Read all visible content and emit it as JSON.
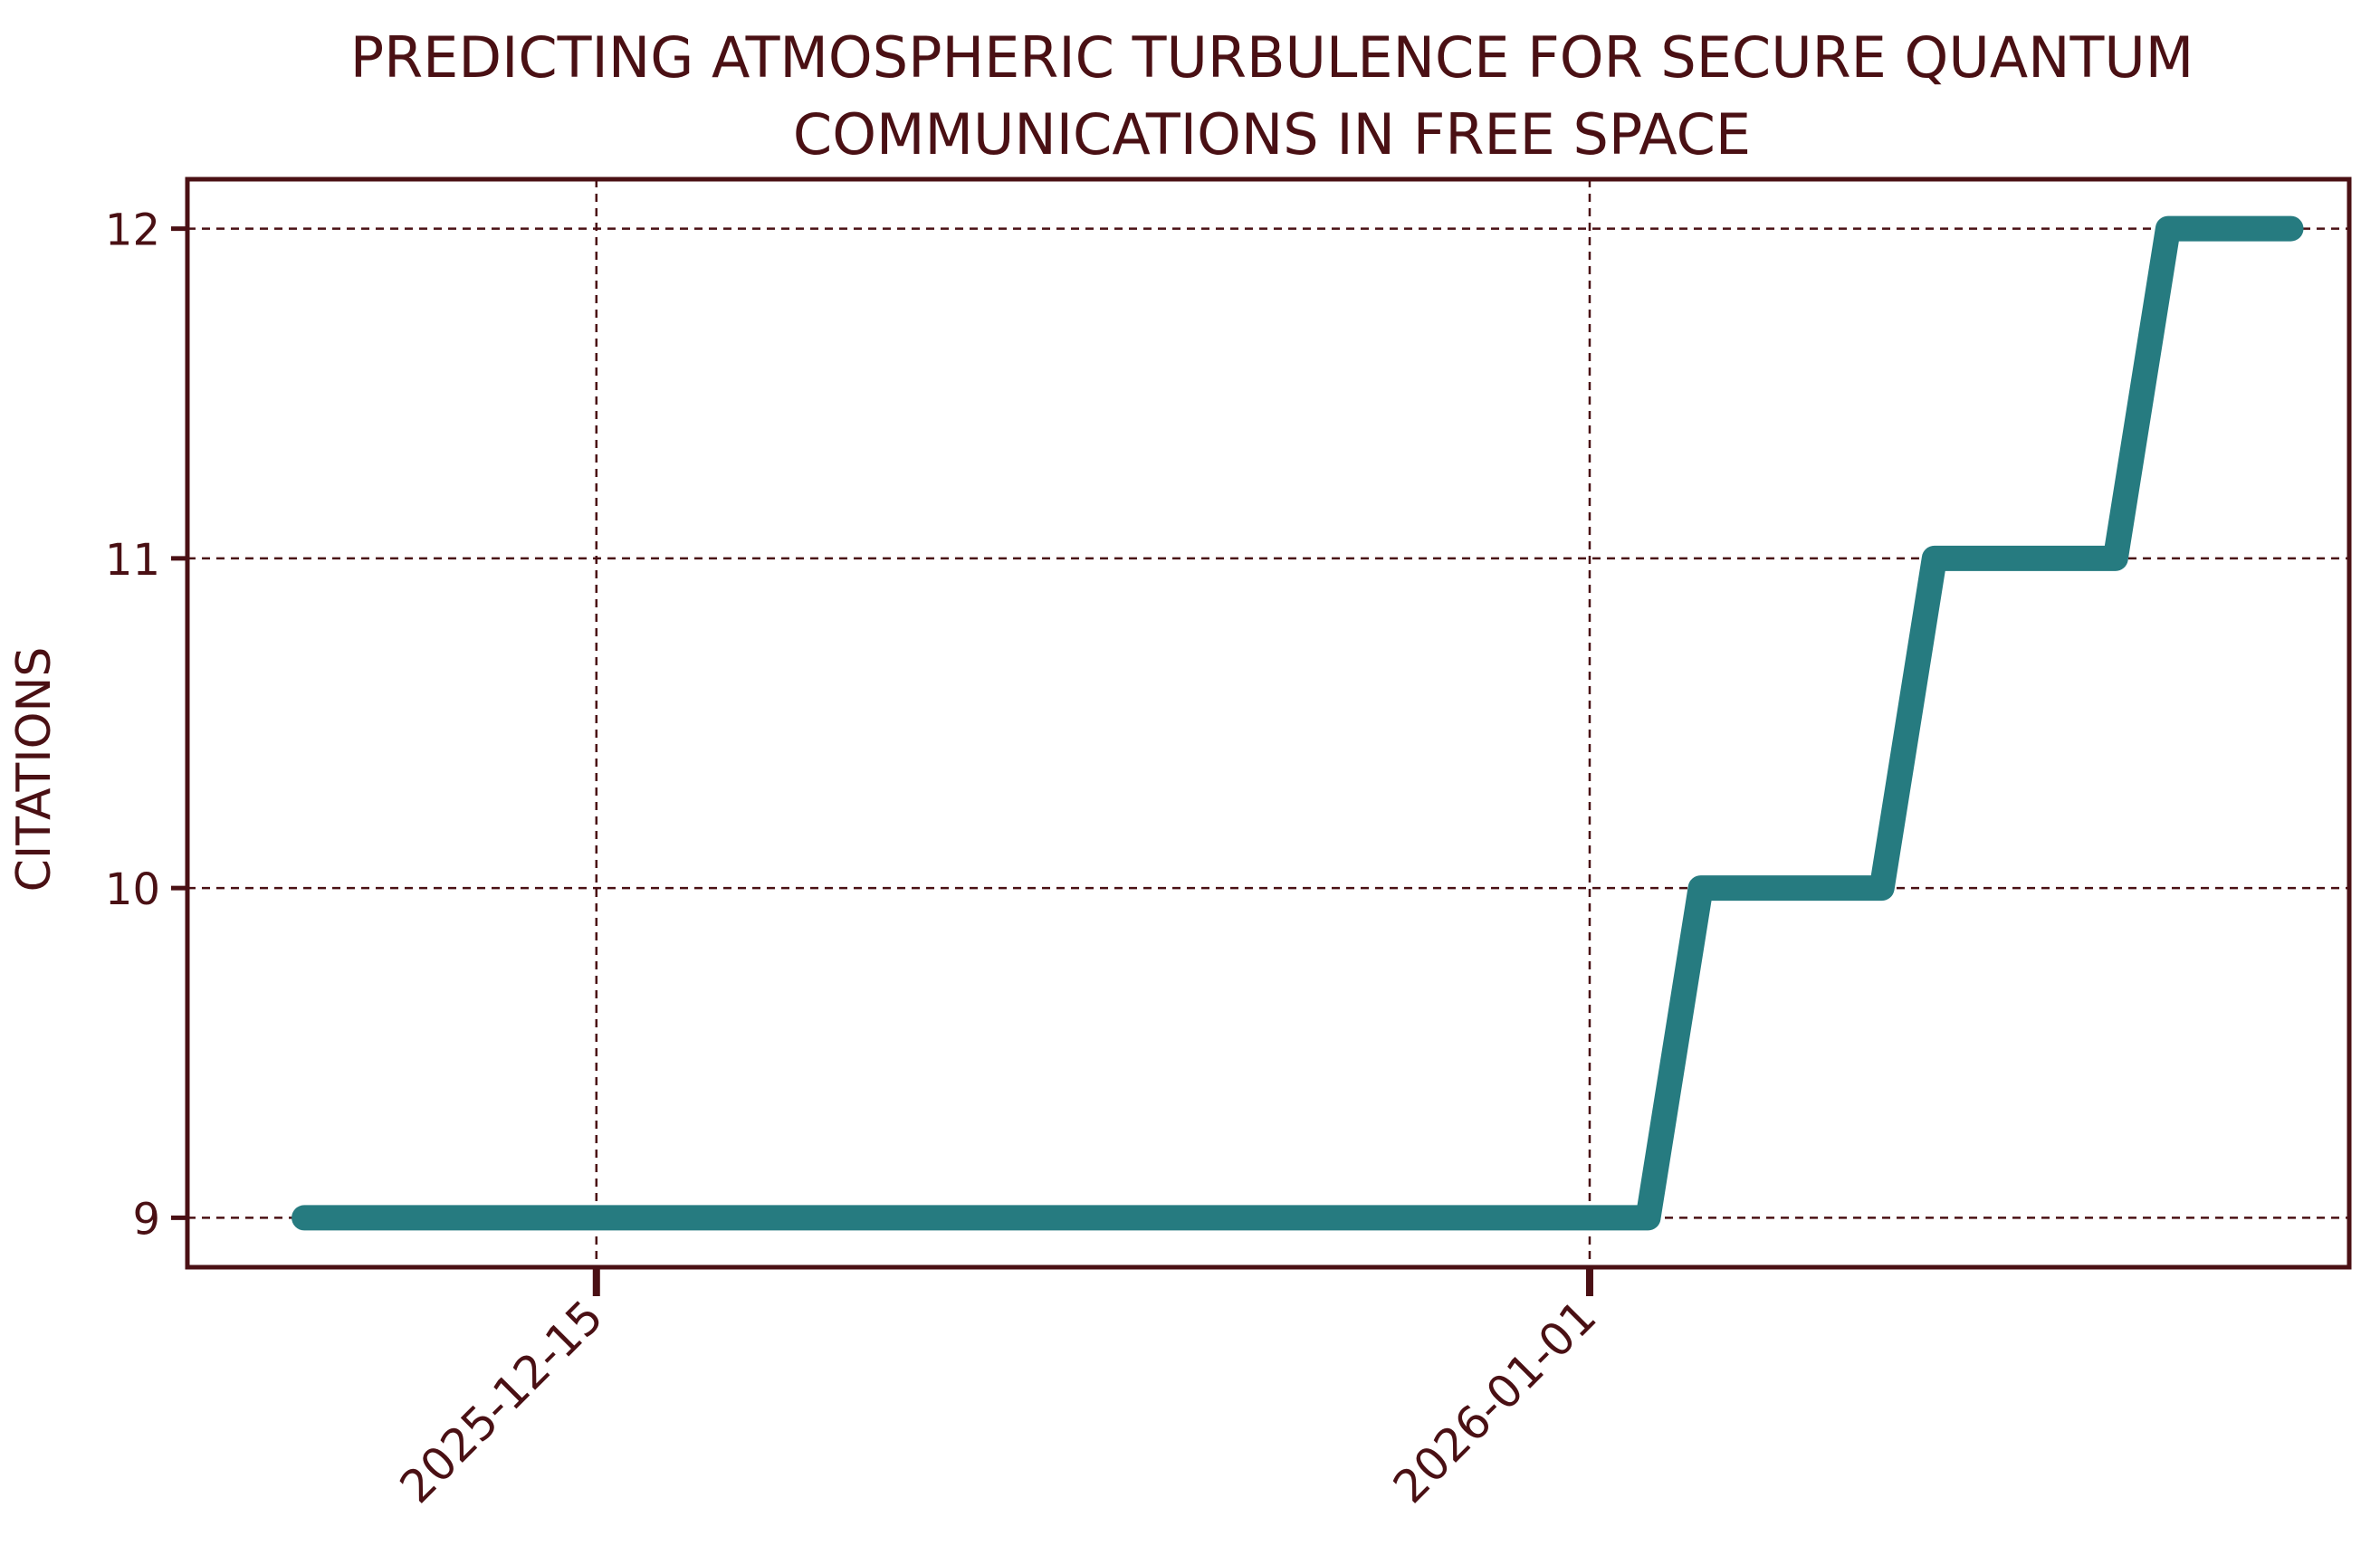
{
  "chart_data": {
    "type": "line",
    "title_lines": [
      "PREDICTING ATMOSPHERIC TURBULENCE FOR SECURE QUANTUM",
      "COMMUNICATIONS IN FREE SPACE"
    ],
    "xlabel": "",
    "ylabel": "CITATIONS",
    "x_ticks": [
      "2025-12-15",
      "2026-01-01"
    ],
    "y_ticks": [
      9,
      10,
      11,
      12
    ],
    "xlim": [
      "2025-12-08",
      "2026-01-14"
    ],
    "ylim": [
      8.85,
      12.15
    ],
    "grid": true,
    "line_style": "step",
    "series": [
      {
        "x": [
          "2025-12-10",
          "2026-01-02",
          "2026-01-06",
          "2026-01-10",
          "2026-01-13"
        ],
        "y": [
          9,
          10,
          11,
          12,
          12
        ]
      }
    ]
  },
  "colors": {
    "ink": "#4a1014",
    "series": "#267b80",
    "background": "#ffffff"
  }
}
